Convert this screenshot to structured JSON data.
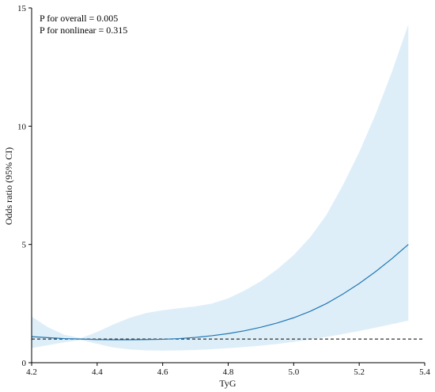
{
  "chart_data": {
    "type": "line",
    "xlabel": "TyG",
    "ylabel": "Odds ratio (95% CI)",
    "xlim": [
      4.2,
      5.4
    ],
    "ylim": [
      0,
      15
    ],
    "x_ticks": [
      4.2,
      4.4,
      4.6,
      4.8,
      5.0,
      5.2,
      5.4
    ],
    "x_tick_labels": [
      "4.2",
      "4.4",
      "4.6",
      "4.8",
      "5.0",
      "5.2",
      "5.4"
    ],
    "y_ticks": [
      0,
      5,
      10,
      15
    ],
    "y_tick_labels": [
      "0",
      "5",
      "10",
      "15"
    ],
    "annotations": [
      "P for overall = 0.005",
      "P for nonlinear = 0.315"
    ],
    "reference_line": {
      "y": 1,
      "style": "dashed",
      "color": "#000000"
    },
    "series": [
      {
        "x": [
          4.2,
          4.25,
          4.3,
          4.35,
          4.4,
          4.45,
          4.5,
          4.55,
          4.6,
          4.65,
          4.7,
          4.75,
          4.8,
          4.85,
          4.9,
          4.95,
          5.0,
          5.05,
          5.1,
          5.15,
          5.2,
          5.25,
          5.3,
          5.35
        ],
        "y": [
          1.1,
          1.06,
          1.02,
          1.0,
          0.98,
          0.97,
          0.97,
          0.98,
          0.99,
          1.02,
          1.07,
          1.14,
          1.23,
          1.35,
          1.5,
          1.68,
          1.9,
          2.17,
          2.5,
          2.9,
          3.35,
          3.85,
          4.4,
          5.0
        ],
        "lower": [
          0.62,
          0.74,
          0.86,
          0.96,
          0.8,
          0.64,
          0.56,
          0.52,
          0.51,
          0.52,
          0.54,
          0.57,
          0.61,
          0.66,
          0.72,
          0.79,
          0.88,
          0.98,
          1.09,
          1.21,
          1.34,
          1.48,
          1.63,
          1.78
        ],
        "upper": [
          1.95,
          1.5,
          1.18,
          1.04,
          1.3,
          1.62,
          1.9,
          2.1,
          2.22,
          2.3,
          2.38,
          2.5,
          2.72,
          3.05,
          3.45,
          3.95,
          4.55,
          5.3,
          6.25,
          7.5,
          8.9,
          10.5,
          12.3,
          14.3
        ]
      }
    ],
    "line_color": "#1f77b4",
    "band_color": "#deeef8",
    "grid": false
  }
}
